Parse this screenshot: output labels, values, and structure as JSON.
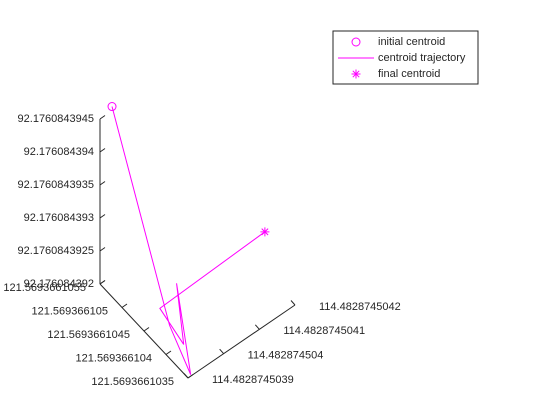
{
  "chart_data": {
    "type": "line3d",
    "xlim": [
      121.5693661035,
      121.5693661055
    ],
    "ylim": [
      114.4828745039,
      114.4828745042
    ],
    "zlim": [
      92.176084392,
      92.1760843945
    ],
    "xticks": [
      121.5693661035,
      121.569366104,
      121.5693661045,
      121.569366105,
      121.5693661055
    ],
    "yticks": [
      114.4828745039,
      114.482874504,
      114.4828745041,
      114.4828745042
    ],
    "zticks": [
      92.176084392,
      92.1760843925,
      92.176084393,
      92.1760843935,
      92.176084394,
      92.1760843945
    ],
    "legend": "upper right",
    "series": [
      {
        "name": "initial centroid",
        "color": "#ff00ff",
        "marker": "o",
        "x": [
          121.56936610547
        ],
        "y": [
          114.48287450393
        ],
        "z": [
          92.1760843946
        ]
      },
      {
        "name": "centroid trajectory",
        "color": "#ff00ff",
        "marker": "line",
        "x": [
          121.56936610547,
          121.56936610392,
          121.56936610352,
          121.56936610376,
          121.56936610376,
          121.56936610414,
          121.56936610386
        ],
        "y": [
          114.48287450393,
          114.4828745039,
          114.48287450391,
          114.4828745039,
          114.48287450392,
          114.4828745039,
          114.48287450416
        ],
        "z": [
          92.1760843946,
          92.1760843925,
          92.176084392,
          92.17608439325,
          92.17608439225,
          92.1760843926,
          92.176084393
        ]
      },
      {
        "name": "final centroid",
        "color": "#ff00ff",
        "marker": "*",
        "x": [
          121.56936610386
        ],
        "y": [
          114.48287450416
        ],
        "z": [
          92.176084393
        ]
      }
    ]
  }
}
